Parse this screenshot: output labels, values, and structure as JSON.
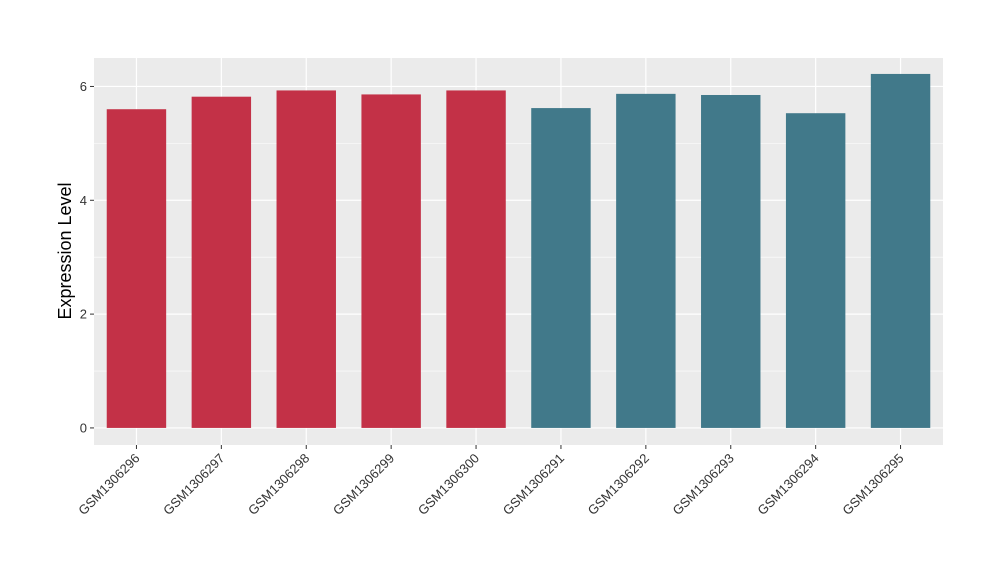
{
  "chart_data": {
    "type": "bar",
    "title": "",
    "xlabel": "",
    "ylabel": "Expression Level",
    "ylim": [
      -0.3,
      6.5
    ],
    "yticks": [
      0,
      2,
      4,
      6
    ],
    "grid": true,
    "categories": [
      "GSM1306296",
      "GSM1306297",
      "GSM1306298",
      "GSM1306299",
      "GSM1306300",
      "GSM1306291",
      "GSM1306292",
      "GSM1306293",
      "GSM1306294",
      "GSM1306295"
    ],
    "values": [
      5.6,
      5.82,
      5.93,
      5.86,
      5.93,
      5.62,
      5.87,
      5.85,
      5.53,
      6.22
    ],
    "bar_colors": [
      "#c33147",
      "#c33147",
      "#c33147",
      "#c33147",
      "#c33147",
      "#41798a",
      "#41798a",
      "#41798a",
      "#41798a",
      "#41798a"
    ],
    "panel_background": "#ebebeb",
    "grid_color": "#ffffff"
  }
}
